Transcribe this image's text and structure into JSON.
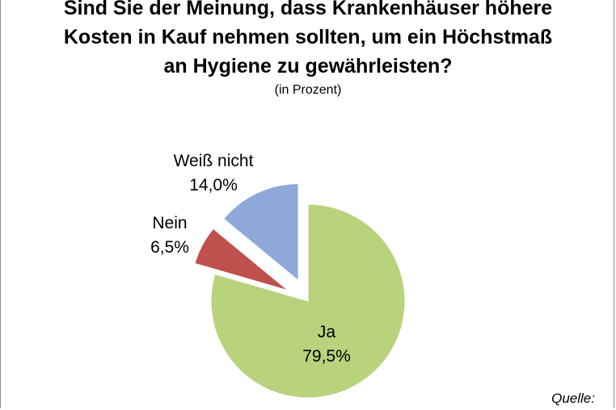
{
  "title_lines": [
    "Sind Sie der Meinung, dass Krankenhäuser höhere",
    "Kosten in Kauf nehmen sollten, um ein Höchstmaß",
    "an Hygiene zu gewährleisten?"
  ],
  "subtitle": "(in Prozent)",
  "source_label": "Quelle:",
  "chart_data": {
    "type": "pie",
    "title": "Sind Sie der Meinung, dass Krankenhäuser höhere Kosten in Kauf nehmen sollten, um ein Höchstmaß an Hygiene zu gewährleisten?",
    "subtitle": "(in Prozent)",
    "legend": "none",
    "slices": [
      {
        "label": "Ja",
        "value": 79.5,
        "value_label": "79,5%",
        "color": "#b9d37d",
        "exploded": false
      },
      {
        "label": "Nein",
        "value": 6.5,
        "value_label": "6,5%",
        "color": "#c0504d",
        "exploded": true
      },
      {
        "label": "Weiß nicht",
        "value": 14.0,
        "value_label": "14,0%",
        "color": "#8ea9d9",
        "exploded": true
      }
    ]
  }
}
